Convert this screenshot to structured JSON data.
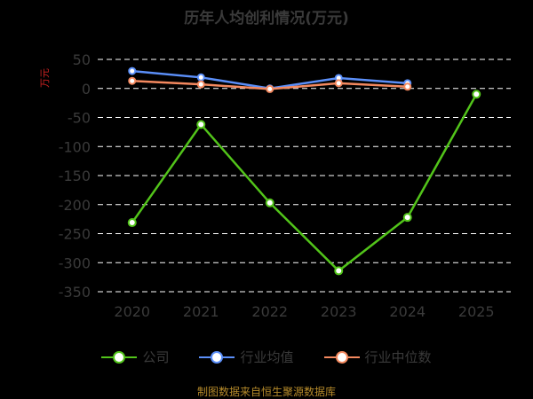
{
  "chart_data": {
    "type": "line",
    "title": "历年人均创利情况(万元)",
    "y_unit": "万元",
    "categories": [
      "2020",
      "2021",
      "2022",
      "2023",
      "2024",
      "2025"
    ],
    "ylim": [
      -350,
      50
    ],
    "yticks": [
      50,
      0,
      -50,
      -100,
      -150,
      -200,
      -250,
      -300,
      -350
    ],
    "grid": true,
    "legend_position": "bottom",
    "series": [
      {
        "name": "公司",
        "color": "#52c41a",
        "values": [
          -231,
          -62,
          -197,
          -314,
          -222,
          -10
        ]
      },
      {
        "name": "行业均值",
        "color": "#5b8ff9",
        "values": [
          30,
          19,
          0,
          18,
          9,
          null
        ]
      },
      {
        "name": "行业中位数",
        "color": "#f4895f",
        "values": [
          13,
          7,
          -1,
          9,
          3,
          null
        ]
      }
    ]
  },
  "footer": {
    "source": "制图数据来自恒生聚源数据库"
  }
}
